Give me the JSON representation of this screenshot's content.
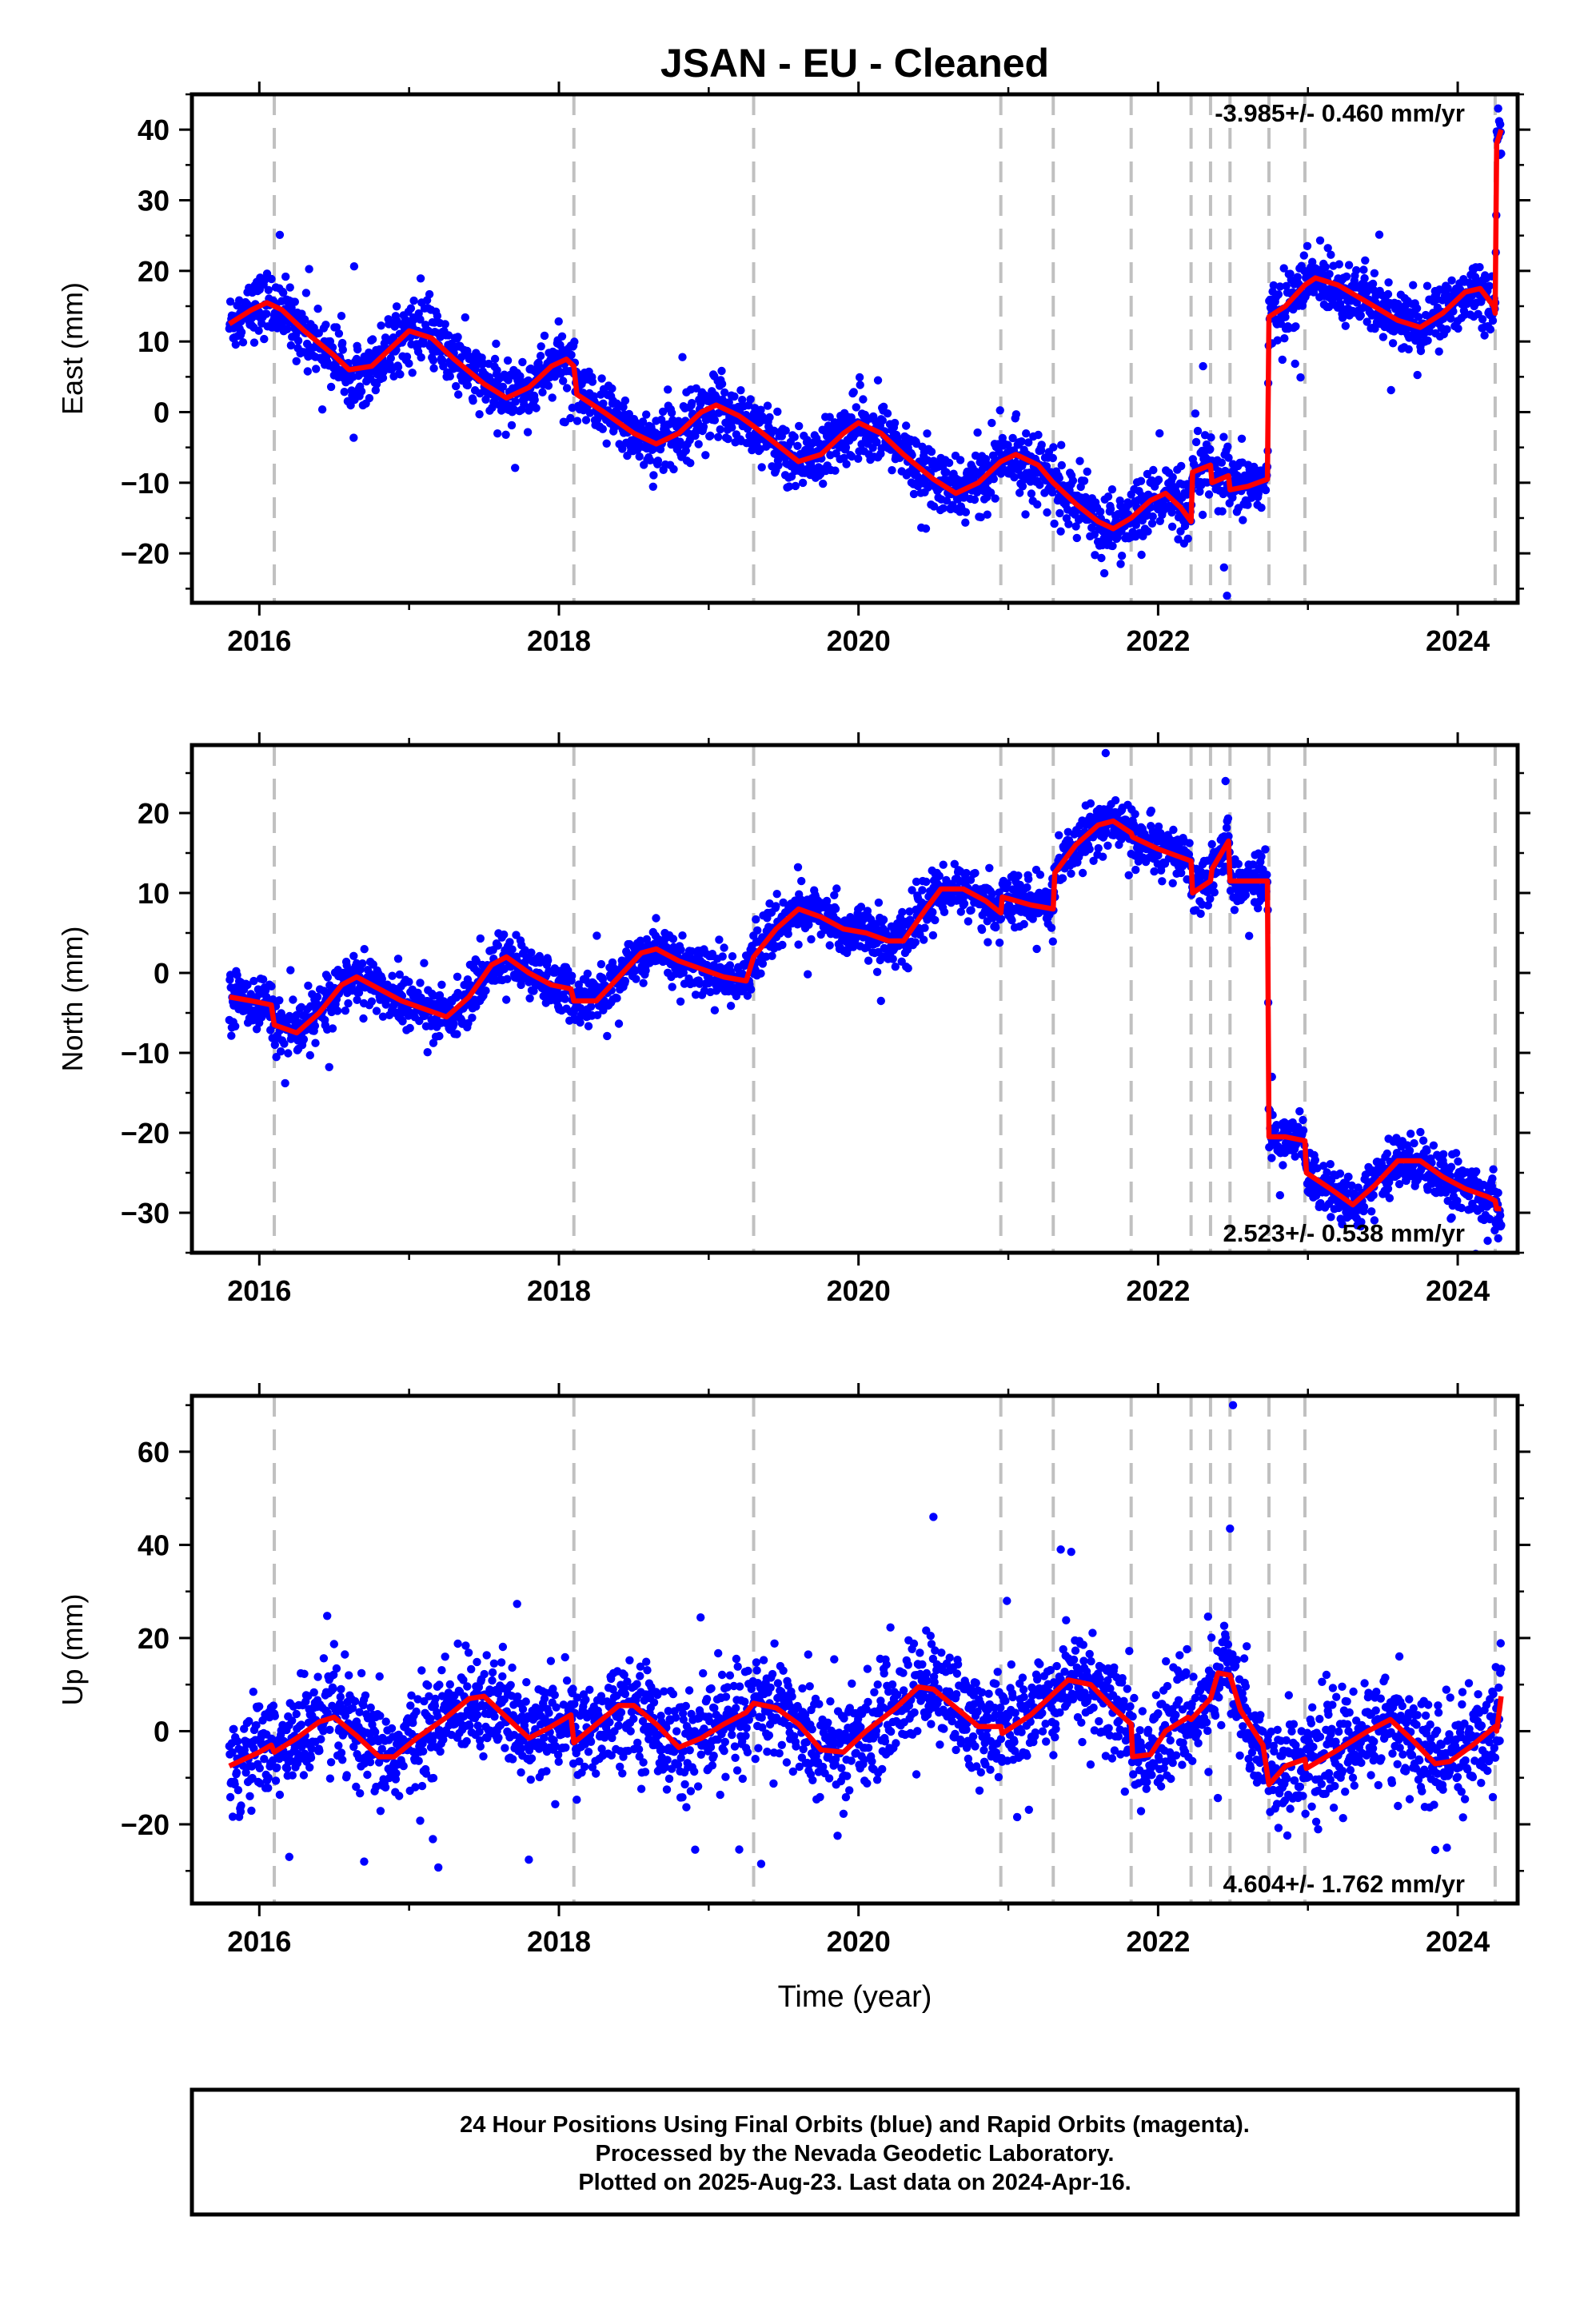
{
  "title": "JSAN  - EU - Cleaned",
  "xlabel": "Time (year)",
  "x_tick_labels": [
    "2016",
    "2018",
    "2020",
    "2022",
    "2024"
  ],
  "colors": {
    "points": "#0000ff",
    "model": "#ff0000",
    "event_lines": "#c0c0c0",
    "frame": "#000000"
  },
  "footer": {
    "line1": "24 Hour Positions Using Final Orbits (blue) and Rapid Orbits (magenta).",
    "line2": "Processed by the Nevada Geodetic Laboratory.",
    "line3": "Plotted on 2025-Aug-23. Last data on 2024-Apr-16."
  },
  "chart_data": [
    {
      "type": "scatter",
      "component": "east",
      "ylabel": "East (mm)",
      "ylim": [
        -27,
        45
      ],
      "xlim": [
        2015.55,
        2024.4
      ],
      "y_ticks": [
        -20,
        -10,
        0,
        10,
        20,
        30,
        40
      ],
      "rate_label": "-3.985+/- 0.460 mm/yr",
      "rate_position": "top-right",
      "event_lines": [
        2016.1,
        2018.1,
        2019.3,
        2020.95,
        2021.3,
        2021.82,
        2022.22,
        2022.35,
        2022.48,
        2022.74,
        2022.98,
        2024.25
      ],
      "model_points": [
        [
          2015.8,
          12.5
        ],
        [
          2015.95,
          14.5
        ],
        [
          2016.05,
          15.5
        ],
        [
          2016.15,
          14.5
        ],
        [
          2016.3,
          11.5
        ],
        [
          2016.5,
          8.0
        ],
        [
          2016.6,
          6.0
        ],
        [
          2016.75,
          6.5
        ],
        [
          2016.9,
          9.5
        ],
        [
          2017.0,
          11.5
        ],
        [
          2017.15,
          10.5
        ],
        [
          2017.3,
          7.5
        ],
        [
          2017.5,
          4.0
        ],
        [
          2017.65,
          2.0
        ],
        [
          2017.8,
          3.5
        ],
        [
          2017.95,
          6.5
        ],
        [
          2018.05,
          7.5
        ],
        [
          2018.1,
          6.5
        ],
        [
          2018.12,
          2.5
        ],
        [
          2018.3,
          0.0
        ],
        [
          2018.5,
          -3.0
        ],
        [
          2018.65,
          -4.5
        ],
        [
          2018.8,
          -3.0
        ],
        [
          2018.95,
          0.0
        ],
        [
          2019.05,
          1.0
        ],
        [
          2019.2,
          -0.5
        ],
        [
          2019.3,
          -2.0
        ],
        [
          2019.45,
          -4.5
        ],
        [
          2019.6,
          -7.0
        ],
        [
          2019.75,
          -6.0
        ],
        [
          2019.9,
          -3.0
        ],
        [
          2020.0,
          -1.5
        ],
        [
          2020.15,
          -3.0
        ],
        [
          2020.3,
          -6.0
        ],
        [
          2020.5,
          -9.5
        ],
        [
          2020.65,
          -11.5
        ],
        [
          2020.8,
          -10.0
        ],
        [
          2020.95,
          -7.0
        ],
        [
          2021.05,
          -6.0
        ],
        [
          2021.2,
          -7.5
        ],
        [
          2021.3,
          -10.0
        ],
        [
          2021.45,
          -13.0
        ],
        [
          2021.6,
          -15.5
        ],
        [
          2021.7,
          -16.5
        ],
        [
          2021.82,
          -15.0
        ],
        [
          2021.95,
          -12.5
        ],
        [
          2022.05,
          -11.5
        ],
        [
          2022.15,
          -13.5
        ],
        [
          2022.22,
          -15.5
        ],
        [
          2022.23,
          -8.5
        ],
        [
          2022.35,
          -7.5
        ],
        [
          2022.36,
          -10.0
        ],
        [
          2022.47,
          -9.0
        ],
        [
          2022.48,
          -11.0
        ],
        [
          2022.6,
          -10.5
        ],
        [
          2022.73,
          -9.5
        ],
        [
          2022.74,
          13.5
        ],
        [
          2022.85,
          15.0
        ],
        [
          2022.98,
          18.0
        ],
        [
          2023.05,
          19.0
        ],
        [
          2023.2,
          18.0
        ],
        [
          2023.4,
          15.5
        ],
        [
          2023.6,
          13.0
        ],
        [
          2023.75,
          12.0
        ],
        [
          2023.9,
          14.0
        ],
        [
          2024.05,
          17.0
        ],
        [
          2024.15,
          17.5
        ],
        [
          2024.24,
          15.0
        ],
        [
          2024.25,
          14.0
        ],
        [
          2024.26,
          38.0
        ],
        [
          2024.29,
          40.0
        ]
      ],
      "noise_mm": 2.2,
      "extra_points": [
        [
          2022.3,
          6.5
        ],
        [
          2022.44,
          -22.0
        ],
        [
          2022.46,
          -26.0
        ],
        [
          2024.27,
          43.0
        ],
        [
          2020.13,
          4.5
        ],
        [
          2020.45,
          -16.5
        ],
        [
          2021.75,
          -21.5
        ]
      ]
    },
    {
      "type": "scatter",
      "component": "north",
      "ylabel": "North (mm)",
      "ylim": [
        -35,
        28.5
      ],
      "xlim": [
        2015.55,
        2024.4
      ],
      "y_ticks": [
        -30,
        -20,
        -10,
        0,
        10,
        20
      ],
      "rate_label": "2.523+/- 0.538 mm/yr",
      "rate_position": "bottom-right",
      "event_lines": [
        2016.1,
        2018.1,
        2019.3,
        2020.95,
        2021.3,
        2021.82,
        2022.22,
        2022.35,
        2022.48,
        2022.74,
        2022.98,
        2024.25
      ],
      "model_points": [
        [
          2015.8,
          -3.0
        ],
        [
          2015.95,
          -3.5
        ],
        [
          2016.08,
          -4.0
        ],
        [
          2016.1,
          -6.5
        ],
        [
          2016.25,
          -7.5
        ],
        [
          2016.4,
          -5.0
        ],
        [
          2016.55,
          -1.5
        ],
        [
          2016.65,
          -0.5
        ],
        [
          2016.8,
          -2.0
        ],
        [
          2016.95,
          -3.5
        ],
        [
          2017.1,
          -4.5
        ],
        [
          2017.25,
          -5.5
        ],
        [
          2017.4,
          -3.0
        ],
        [
          2017.55,
          1.0
        ],
        [
          2017.65,
          2.0
        ],
        [
          2017.8,
          0.0
        ],
        [
          2017.95,
          -1.5
        ],
        [
          2018.08,
          -2.0
        ],
        [
          2018.1,
          -3.5
        ],
        [
          2018.25,
          -3.5
        ],
        [
          2018.4,
          -0.5
        ],
        [
          2018.55,
          2.5
        ],
        [
          2018.65,
          3.0
        ],
        [
          2018.8,
          1.5
        ],
        [
          2018.95,
          0.5
        ],
        [
          2019.1,
          -0.5
        ],
        [
          2019.25,
          -1.0
        ],
        [
          2019.3,
          2.0
        ],
        [
          2019.45,
          5.5
        ],
        [
          2019.6,
          8.0
        ],
        [
          2019.75,
          7.0
        ],
        [
          2019.9,
          5.5
        ],
        [
          2020.05,
          5.0
        ],
        [
          2020.2,
          4.0
        ],
        [
          2020.3,
          4.0
        ],
        [
          2020.45,
          8.0
        ],
        [
          2020.55,
          10.5
        ],
        [
          2020.7,
          10.5
        ],
        [
          2020.85,
          9.0
        ],
        [
          2020.95,
          7.5
        ],
        [
          2020.96,
          9.5
        ],
        [
          2021.15,
          8.5
        ],
        [
          2021.3,
          8.0
        ],
        [
          2021.31,
          12.5
        ],
        [
          2021.45,
          16.0
        ],
        [
          2021.6,
          18.5
        ],
        [
          2021.7,
          19.0
        ],
        [
          2021.82,
          17.5
        ],
        [
          2021.83,
          17.0
        ],
        [
          2022.0,
          15.5
        ],
        [
          2022.22,
          14.0
        ],
        [
          2022.23,
          10.0
        ],
        [
          2022.35,
          11.5
        ],
        [
          2022.36,
          13.0
        ],
        [
          2022.47,
          16.5
        ],
        [
          2022.48,
          11.5
        ],
        [
          2022.6,
          11.5
        ],
        [
          2022.73,
          11.5
        ],
        [
          2022.74,
          -20.5
        ],
        [
          2022.85,
          -20.5
        ],
        [
          2022.98,
          -21.0
        ],
        [
          2022.99,
          -25.0
        ],
        [
          2023.15,
          -27.0
        ],
        [
          2023.3,
          -29.0
        ],
        [
          2023.45,
          -26.5
        ],
        [
          2023.6,
          -23.5
        ],
        [
          2023.75,
          -23.5
        ],
        [
          2023.9,
          -25.5
        ],
        [
          2024.05,
          -27.0
        ],
        [
          2024.2,
          -28.0
        ],
        [
          2024.25,
          -28.5
        ],
        [
          2024.26,
          -29.5
        ],
        [
          2024.29,
          -29.5
        ]
      ],
      "noise_mm": 1.6,
      "extra_points": [
        [
          2021.65,
          27.5
        ],
        [
          2020.15,
          -3.5
        ],
        [
          2022.45,
          24.0
        ],
        [
          2022.76,
          -13.0
        ],
        [
          2024.27,
          -27.5
        ],
        [
          2024.2,
          -33.5
        ]
      ]
    },
    {
      "type": "scatter",
      "component": "up",
      "ylabel": "Up (mm)",
      "ylim": [
        -37,
        72
      ],
      "xlim": [
        2015.55,
        2024.4
      ],
      "y_ticks": [
        -20,
        0,
        20,
        40,
        60
      ],
      "rate_label": "4.604+/- 1.762 mm/yr",
      "rate_position": "bottom-right",
      "event_lines": [
        2016.1,
        2018.1,
        2019.3,
        2020.95,
        2021.3,
        2021.82,
        2022.22,
        2022.35,
        2022.48,
        2022.74,
        2022.98,
        2024.25
      ],
      "model_points": [
        [
          2015.8,
          -7.5
        ],
        [
          2016.0,
          -4.5
        ],
        [
          2016.08,
          -3.0
        ],
        [
          2016.1,
          -4.5
        ],
        [
          2016.25,
          -1.5
        ],
        [
          2016.4,
          2.0
        ],
        [
          2016.5,
          3.0
        ],
        [
          2016.65,
          -1.0
        ],
        [
          2016.8,
          -5.5
        ],
        [
          2016.9,
          -5.5
        ],
        [
          2017.05,
          -1.5
        ],
        [
          2017.25,
          3.0
        ],
        [
          2017.4,
          7.0
        ],
        [
          2017.5,
          7.5
        ],
        [
          2017.65,
          3.0
        ],
        [
          2017.8,
          -1.5
        ],
        [
          2017.95,
          1.0
        ],
        [
          2018.08,
          3.5
        ],
        [
          2018.1,
          -2.5
        ],
        [
          2018.25,
          1.5
        ],
        [
          2018.4,
          5.5
        ],
        [
          2018.5,
          5.5
        ],
        [
          2018.65,
          1.5
        ],
        [
          2018.8,
          -3.5
        ],
        [
          2018.95,
          -1.5
        ],
        [
          2019.1,
          1.5
        ],
        [
          2019.25,
          4.0
        ],
        [
          2019.3,
          6.0
        ],
        [
          2019.45,
          5.0
        ],
        [
          2019.6,
          1.5
        ],
        [
          2019.75,
          -4.0
        ],
        [
          2019.9,
          -4.5
        ],
        [
          2020.05,
          0.0
        ],
        [
          2020.25,
          5.0
        ],
        [
          2020.4,
          9.5
        ],
        [
          2020.5,
          9.0
        ],
        [
          2020.65,
          5.0
        ],
        [
          2020.8,
          1.0
        ],
        [
          2020.95,
          1.0
        ],
        [
          2020.96,
          -0.5
        ],
        [
          2021.15,
          3.5
        ],
        [
          2021.3,
          8.0
        ],
        [
          2021.4,
          11.0
        ],
        [
          2021.55,
          10.0
        ],
        [
          2021.7,
          5.0
        ],
        [
          2021.82,
          1.5
        ],
        [
          2021.83,
          -5.5
        ],
        [
          2021.95,
          -5.0
        ],
        [
          2022.05,
          0.0
        ],
        [
          2022.2,
          3.0
        ],
        [
          2022.22,
          2.5
        ],
        [
          2022.35,
          7.0
        ],
        [
          2022.4,
          12.5
        ],
        [
          2022.48,
          12.0
        ],
        [
          2022.55,
          4.5
        ],
        [
          2022.7,
          -3.0
        ],
        [
          2022.74,
          -11.5
        ],
        [
          2022.85,
          -7.5
        ],
        [
          2022.98,
          -6.0
        ],
        [
          2022.99,
          -8.0
        ],
        [
          2023.2,
          -4.0
        ],
        [
          2023.4,
          0.0
        ],
        [
          2023.55,
          2.5
        ],
        [
          2023.7,
          -2.0
        ],
        [
          2023.85,
          -7.0
        ],
        [
          2023.95,
          -6.5
        ],
        [
          2024.1,
          -3.0
        ],
        [
          2024.25,
          1.0
        ],
        [
          2024.26,
          0.0
        ],
        [
          2024.29,
          7.5
        ]
      ],
      "noise_mm": 5.5,
      "extra_points": [
        [
          2022.5,
          70.0
        ],
        [
          2020.5,
          46.0
        ],
        [
          2022.48,
          43.5
        ],
        [
          2021.35,
          39.0
        ],
        [
          2021.42,
          38.5
        ],
        [
          2019.35,
          -28.5
        ],
        [
          2016.2,
          -27.0
        ],
        [
          2016.7,
          -28.0
        ],
        [
          2023.85,
          -25.5
        ]
      ]
    }
  ]
}
